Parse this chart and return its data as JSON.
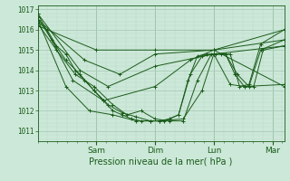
{
  "title": "",
  "xlabel": "Pression niveau de la mer( hPa )",
  "ylabel": "",
  "ylim": [
    1010.5,
    1017.2
  ],
  "yticks": [
    1011,
    1012,
    1013,
    1014,
    1015,
    1016,
    1017
  ],
  "bg_color": "#cce8d8",
  "grid_major_color": "#aaccb8",
  "grid_minor_color": "#bbd8c8",
  "line_color": "#1a5c1a",
  "marker": "+",
  "day_labels": [
    "Sam",
    "Dim",
    "Lun",
    "Mar"
  ],
  "day_positions": [
    0.25,
    0.5,
    0.75,
    1.0
  ],
  "xlim": [
    0.0,
    1.05
  ],
  "series": [
    {
      "x": [
        0.0,
        0.25,
        0.5,
        0.75,
        1.05
      ],
      "y": [
        1016.2,
        1015.0,
        1015.0,
        1015.0,
        1016.0
      ]
    },
    {
      "x": [
        0.0,
        0.2,
        0.35,
        0.5,
        0.75,
        1.05
      ],
      "y": [
        1016.5,
        1014.5,
        1013.8,
        1014.8,
        1015.0,
        1015.5
      ]
    },
    {
      "x": [
        0.0,
        0.18,
        0.3,
        0.5,
        0.75,
        1.05
      ],
      "y": [
        1016.8,
        1014.0,
        1013.2,
        1014.2,
        1014.8,
        1015.2
      ]
    },
    {
      "x": [
        0.0,
        0.15,
        0.28,
        0.5,
        0.65,
        0.75,
        1.05
      ],
      "y": [
        1016.8,
        1013.5,
        1012.5,
        1013.2,
        1014.5,
        1015.0,
        1013.2
      ]
    },
    {
      "x": [
        0.0,
        0.12,
        0.22,
        0.32,
        0.42,
        0.52,
        0.62,
        0.7,
        0.75,
        0.82,
        0.88,
        1.05
      ],
      "y": [
        1016.5,
        1013.2,
        1012.0,
        1011.8,
        1011.5,
        1011.5,
        1011.6,
        1013.0,
        1014.8,
        1013.3,
        1013.2,
        1013.3
      ]
    },
    {
      "x": [
        0.0,
        0.08,
        0.16,
        0.24,
        0.32,
        0.38,
        0.44,
        0.5,
        0.56,
        0.62,
        0.68,
        0.74,
        0.78,
        0.82,
        0.86,
        0.9,
        0.95,
        1.05
      ],
      "y": [
        1016.3,
        1015.0,
        1013.8,
        1013.2,
        1012.3,
        1011.8,
        1012.0,
        1011.6,
        1011.5,
        1011.5,
        1013.5,
        1014.8,
        1014.8,
        1014.8,
        1013.2,
        1013.3,
        1015.3,
        1016.0
      ]
    },
    {
      "x": [
        0.0,
        0.06,
        0.12,
        0.18,
        0.24,
        0.3,
        0.36,
        0.42,
        0.48,
        0.54,
        0.6,
        0.65,
        0.7,
        0.75,
        0.8,
        0.85,
        0.9,
        0.95,
        1.05
      ],
      "y": [
        1016.6,
        1015.5,
        1014.5,
        1013.8,
        1013.0,
        1012.3,
        1011.9,
        1011.7,
        1011.5,
        1011.5,
        1011.8,
        1013.8,
        1014.7,
        1014.8,
        1014.8,
        1013.8,
        1013.2,
        1015.0,
        1015.5
      ]
    },
    {
      "x": [
        0.0,
        0.04,
        0.08,
        0.12,
        0.16,
        0.2,
        0.24,
        0.28,
        0.32,
        0.36,
        0.4,
        0.44,
        0.48,
        0.52,
        0.56,
        0.6,
        0.64,
        0.68,
        0.72,
        0.76,
        0.8,
        0.84,
        0.88,
        0.92,
        0.96,
        1.05
      ],
      "y": [
        1016.4,
        1016.0,
        1015.2,
        1014.8,
        1014.0,
        1013.5,
        1013.0,
        1012.5,
        1012.0,
        1011.8,
        1011.6,
        1011.5,
        1011.5,
        1011.5,
        1011.6,
        1011.8,
        1013.5,
        1014.7,
        1014.8,
        1014.8,
        1014.8,
        1013.8,
        1013.2,
        1013.2,
        1015.0,
        1015.2
      ]
    }
  ]
}
